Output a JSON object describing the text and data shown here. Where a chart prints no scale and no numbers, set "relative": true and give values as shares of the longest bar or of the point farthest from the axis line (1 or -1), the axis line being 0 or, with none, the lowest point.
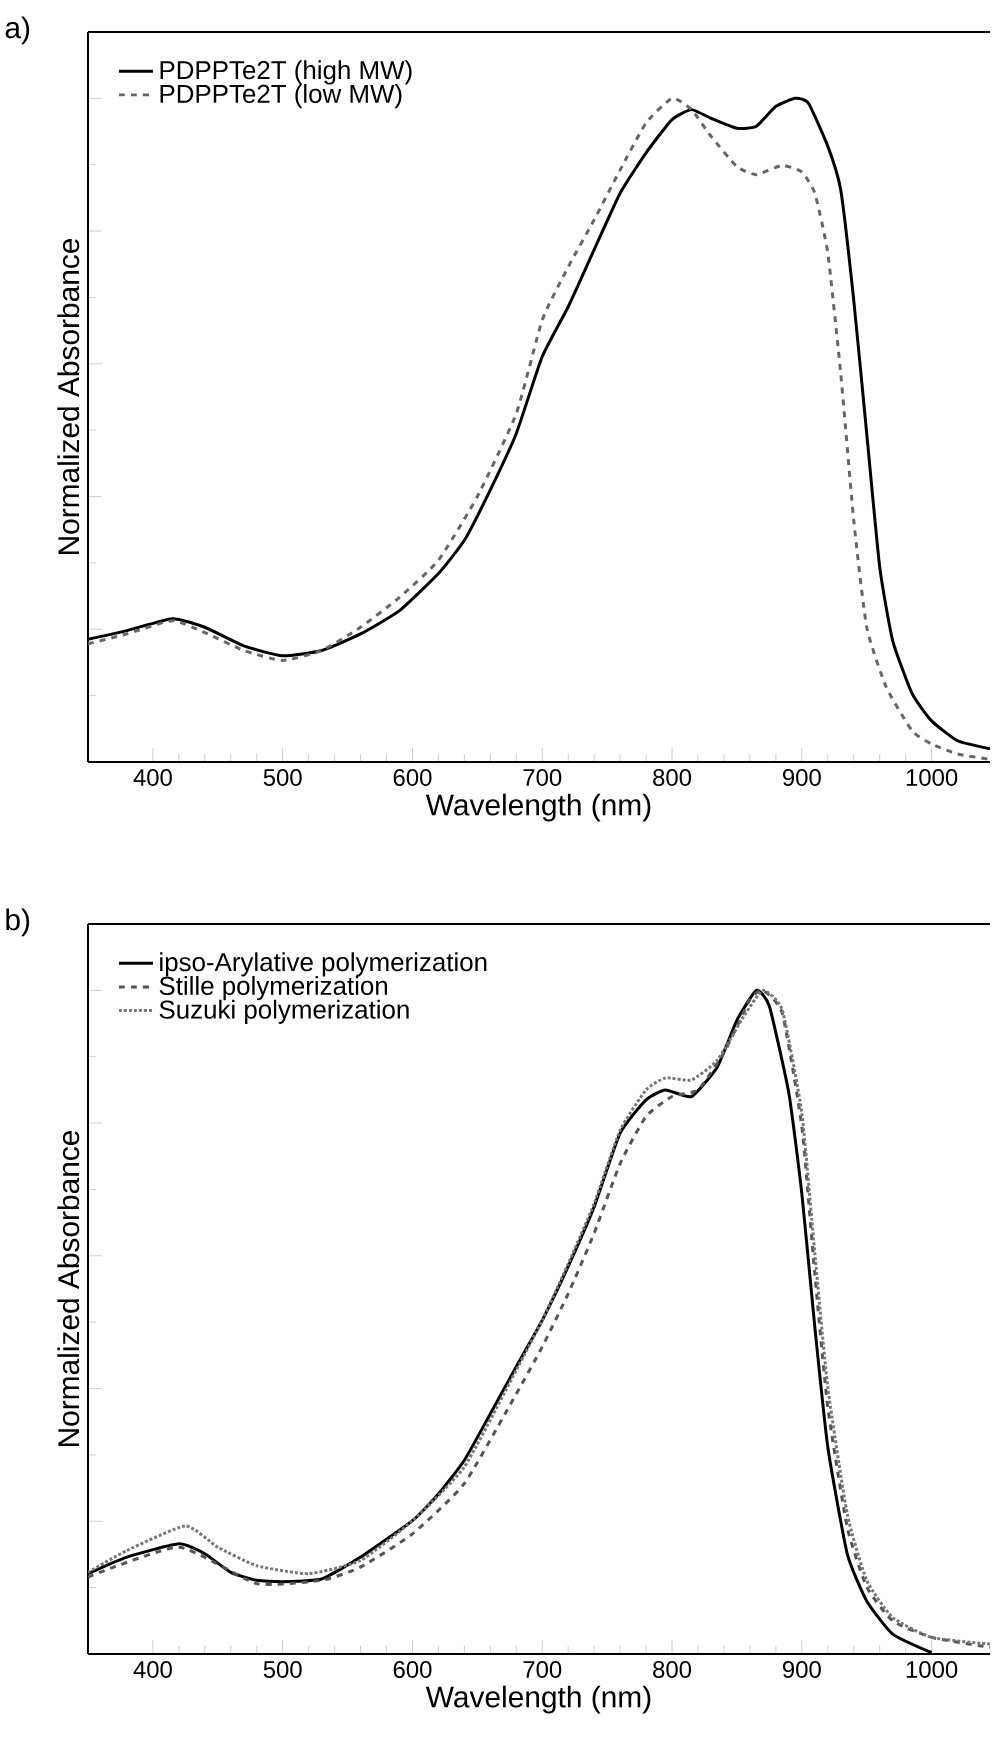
{
  "chart_data": [
    {
      "type": "line",
      "title": "a)",
      "xlabel": "Wavelength (nm)",
      "ylabel": "Normalized Absorbance",
      "relative": true,
      "xlim": [
        350,
        1045
      ],
      "xticks": [
        400,
        500,
        600,
        700,
        800,
        900,
        1000
      ],
      "tick_labels": "x",
      "legend": "top left",
      "series": [
        {
          "name": "PDPPTe2T (high MW)",
          "color": "#000000",
          "line_style": "solid",
          "x": [
            350,
            380,
            415,
            440,
            470,
            500,
            530,
            560,
            590,
            620,
            640,
            660,
            680,
            700,
            720,
            740,
            760,
            780,
            800,
            815,
            830,
            850,
            865,
            880,
            895,
            905,
            920,
            930,
            940,
            950,
            960,
            970,
            985,
            1000,
            1020,
            1045
          ],
          "values": [
            0.185,
            0.198,
            0.216,
            0.203,
            0.175,
            0.16,
            0.168,
            0.193,
            0.228,
            0.284,
            0.334,
            0.41,
            0.495,
            0.611,
            0.686,
            0.772,
            0.857,
            0.918,
            0.968,
            0.983,
            0.97,
            0.955,
            0.958,
            0.988,
            1.0,
            0.993,
            0.928,
            0.862,
            0.696,
            0.495,
            0.294,
            0.183,
            0.103,
            0.062,
            0.032,
            0.02
          ]
        },
        {
          "name": "PDPPTe2T (low MW)",
          "color": "#666666",
          "line_style": "dashed",
          "x": [
            350,
            380,
            415,
            440,
            470,
            500,
            530,
            560,
            590,
            620,
            650,
            680,
            700,
            720,
            740,
            760,
            780,
            800,
            815,
            830,
            850,
            865,
            885,
            900,
            910,
            920,
            930,
            940,
            950,
            965,
            985,
            1000,
            1020,
            1045
          ],
          "values": [
            0.178,
            0.193,
            0.213,
            0.195,
            0.168,
            0.153,
            0.168,
            0.203,
            0.248,
            0.304,
            0.4,
            0.525,
            0.666,
            0.746,
            0.817,
            0.892,
            0.963,
            1.0,
            0.983,
            0.943,
            0.897,
            0.885,
            0.899,
            0.889,
            0.857,
            0.767,
            0.585,
            0.364,
            0.203,
            0.113,
            0.047,
            0.027,
            0.012,
            0.004
          ]
        }
      ]
    },
    {
      "type": "line",
      "title": "b)",
      "xlabel": "Wavelength (nm)",
      "ylabel": "Normalized Absorbance",
      "relative": true,
      "xlim": [
        350,
        1045
      ],
      "xticks": [
        400,
        500,
        600,
        700,
        800,
        900,
        1000
      ],
      "tick_labels": "x",
      "legend": "top left",
      "series": [
        {
          "name": "ipso-Arylative polymerization",
          "color": "#000000",
          "line_style": "solid",
          "x": [
            350,
            380,
            420,
            440,
            460,
            480,
            500,
            530,
            560,
            600,
            620,
            640,
            660,
            680,
            700,
            720,
            740,
            760,
            780,
            795,
            815,
            835,
            850,
            865,
            875,
            890,
            900,
            910,
            920,
            935,
            950,
            970,
            1000
          ],
          "values": [
            0.121,
            0.146,
            0.166,
            0.151,
            0.123,
            0.111,
            0.109,
            0.113,
            0.146,
            0.201,
            0.241,
            0.292,
            0.362,
            0.433,
            0.503,
            0.584,
            0.674,
            0.785,
            0.835,
            0.85,
            0.84,
            0.885,
            0.955,
            1.0,
            0.976,
            0.845,
            0.694,
            0.493,
            0.312,
            0.151,
            0.08,
            0.03,
            0.002
          ]
        },
        {
          "name": "Stille polymerization",
          "color": "#555555",
          "line_style": "dashed",
          "x": [
            350,
            420,
            480,
            530,
            560,
            600,
            640,
            680,
            700,
            720,
            740,
            760,
            780,
            800,
            820,
            840,
            860,
            870,
            885,
            900,
            910,
            920,
            935,
            950,
            970,
            1000,
            1045
          ],
          "values": [
            0.116,
            0.161,
            0.106,
            0.111,
            0.131,
            0.181,
            0.257,
            0.392,
            0.463,
            0.543,
            0.634,
            0.739,
            0.81,
            0.84,
            0.85,
            0.906,
            0.986,
            1.0,
            0.965,
            0.795,
            0.573,
            0.372,
            0.191,
            0.101,
            0.05,
            0.025,
            0.01
          ]
        },
        {
          "name": "Suzuki polymerization",
          "color": "#777777",
          "line_style": "dotted",
          "x": [
            350,
            380,
            425,
            450,
            480,
            520,
            560,
            600,
            640,
            680,
            700,
            720,
            740,
            760,
            780,
            795,
            815,
            835,
            855,
            870,
            885,
            900,
            910,
            920,
            935,
            950,
            970,
            1000,
            1045
          ],
          "values": [
            0.123,
            0.156,
            0.193,
            0.161,
            0.133,
            0.121,
            0.141,
            0.201,
            0.282,
            0.428,
            0.503,
            0.588,
            0.679,
            0.789,
            0.85,
            0.868,
            0.865,
            0.895,
            0.96,
            1.0,
            0.97,
            0.815,
            0.604,
            0.402,
            0.211,
            0.111,
            0.055,
            0.025,
            0.015
          ]
        }
      ]
    }
  ]
}
